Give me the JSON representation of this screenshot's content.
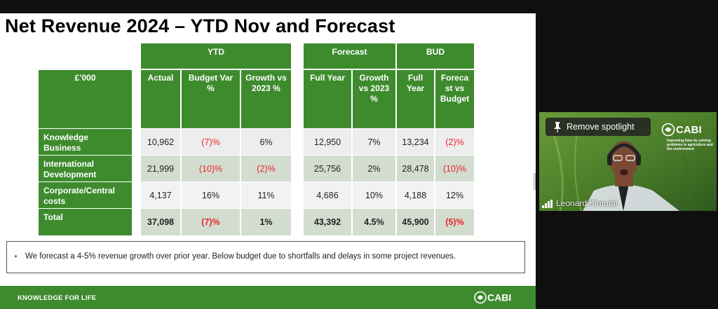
{
  "slide": {
    "title": "Net Revenue 2024 – YTD Nov and Forecast",
    "groups": {
      "ytd": "YTD",
      "forecast": "Forecast",
      "bud": "BUD"
    },
    "columns": {
      "unit": "£’000",
      "actual": "Actual",
      "budget_var": "Budget Var %",
      "growth_vs_2023": "Growth vs 2023 %",
      "full_year": "Full Year",
      "forecast_growth": "Growth vs 2023 %",
      "bud_full_year": "Full Year",
      "forecast_vs_budget": "Foreca st vs Budget"
    },
    "rows": [
      {
        "label": "Knowledge Business",
        "actual": "10,962",
        "budget_var": "(7)%",
        "growth": "6%",
        "full_year": "12,950",
        "fc_growth": "7%",
        "bud_full_year": "13,234",
        "fc_vs_bud": "(2)%"
      },
      {
        "label": "International Development",
        "actual": "21,999",
        "budget_var": "(10)%",
        "growth": "(2)%",
        "full_year": "25,756",
        "fc_growth": "2%",
        "bud_full_year": "28,478",
        "fc_vs_bud": "(10)%"
      },
      {
        "label": "Corporate/Central costs",
        "actual": "4,137",
        "budget_var": "16%",
        "growth": "11%",
        "full_year": "4,686",
        "fc_growth": "10%",
        "bud_full_year": "4,188",
        "fc_vs_bud": "12%"
      },
      {
        "label": "Total",
        "actual": "37,098",
        "budget_var": "(7)%",
        "growth": "1%",
        "full_year": "43,392",
        "fc_growth": "4.5%",
        "bud_full_year": "45,900",
        "fc_vs_bud": "(5)%"
      }
    ],
    "note": "We forecast a 4-5% revenue growth over prior year. Below budget due to shortfalls and delays in some project revenues.",
    "footer_tagline": "KNOWLEDGE FOR LIFE",
    "footer_logo": "CABI"
  },
  "video": {
    "spotlight_button": "Remove spotlight",
    "participant_name": "Leonard Kimutai",
    "logo": "CABI",
    "tagline": "Improving lives by solving problems in agriculture and the environment"
  },
  "colors": {
    "green": "#3e8b2e",
    "negative": "#e8242b"
  },
  "icons": [
    "pin-icon",
    "signal-bars-icon",
    "cabi-logo-icon"
  ]
}
